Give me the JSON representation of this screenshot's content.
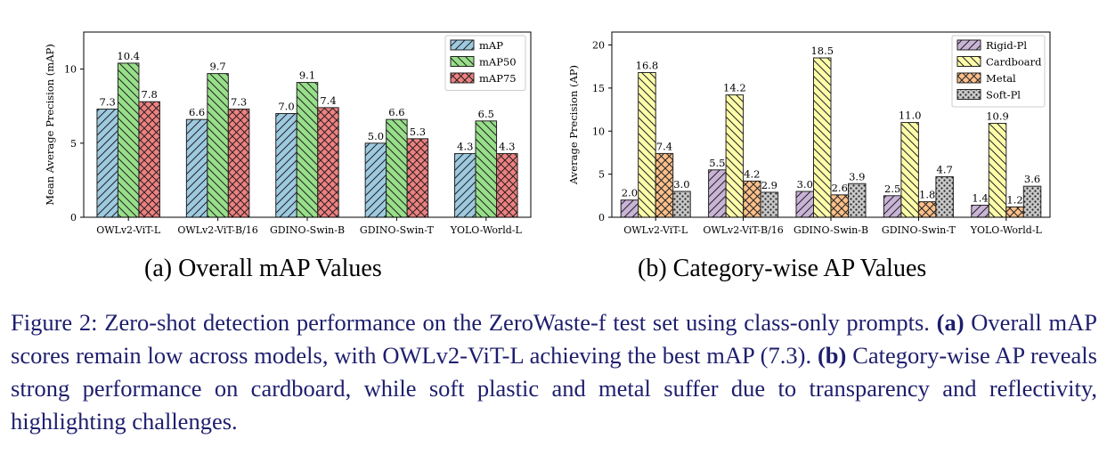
{
  "chart_data": [
    {
      "type": "bar",
      "title": "",
      "ylabel": "Mean Average Precision (mAP)",
      "xlabel": "",
      "ylim": [
        0,
        12.5
      ],
      "yticks": [
        0,
        5,
        10
      ],
      "categories": [
        "OWLv2-ViT-L",
        "OWLv2-ViT-B/16",
        "GDINO-Swin-B",
        "GDINO-Swin-T",
        "YOLO-World-L"
      ],
      "series": [
        {
          "name": "mAP",
          "values": [
            7.3,
            6.6,
            7.0,
            5.0,
            4.3
          ],
          "labels": [
            "7.3",
            "6.6",
            "7.0",
            "5.0",
            "4.3"
          ],
          "color": "#9ecae1",
          "hatch": "diag"
        },
        {
          "name": "mAP50",
          "values": [
            10.4,
            9.7,
            9.1,
            6.6,
            6.5
          ],
          "labels": [
            "10.4",
            "9.7",
            "9.1",
            "6.6",
            "6.5"
          ],
          "color": "#98df8a",
          "hatch": "backdiag"
        },
        {
          "name": "mAP75",
          "values": [
            7.8,
            7.3,
            7.4,
            5.3,
            4.3
          ],
          "labels": [
            "7.8",
            "7.3",
            "7.4",
            "5.3",
            "4.3"
          ],
          "color": "#f08080",
          "hatch": "cross"
        }
      ],
      "legend": "top-right",
      "grid": false
    },
    {
      "type": "bar",
      "title": "",
      "ylabel": "Average Precision (AP)",
      "xlabel": "",
      "ylim": [
        0,
        21.5
      ],
      "yticks": [
        0,
        5,
        10,
        15,
        20
      ],
      "categories": [
        "OWLv2-ViT-L",
        "OWLv2-ViT-B/16",
        "GDINO-Swin-B",
        "GDINO-Swin-T",
        "YOLO-World-L"
      ],
      "series": [
        {
          "name": "Rigid-Pl",
          "values": [
            2.0,
            5.5,
            3.0,
            2.5,
            1.4
          ],
          "labels": [
            "2.0",
            "5.5",
            "3.0",
            "2.5",
            "1.4"
          ],
          "color": "#c9b3d6",
          "hatch": "diag"
        },
        {
          "name": "Cardboard",
          "values": [
            16.8,
            14.2,
            18.5,
            11.0,
            10.9
          ],
          "labels": [
            "16.8",
            "14.2",
            "18.5",
            "11.0",
            "10.9"
          ],
          "color": "#fdfdaa",
          "hatch": "backdiag"
        },
        {
          "name": "Metal",
          "values": [
            7.4,
            4.2,
            2.6,
            1.8,
            1.2
          ],
          "labels": [
            "7.4",
            "4.2",
            "2.6",
            "1.8",
            "1.2"
          ],
          "color": "#fdc08a",
          "hatch": "cross"
        },
        {
          "name": "Soft-Pl",
          "values": [
            3.0,
            2.9,
            3.9,
            4.7,
            3.6
          ],
          "labels": [
            "3.0",
            "2.9",
            "3.9",
            "4.7",
            "3.6"
          ],
          "color": "#c8c8c8",
          "hatch": "dots"
        }
      ],
      "legend": "top-right",
      "grid": false
    }
  ],
  "subcaptions": {
    "a": "(a) Overall mAP Values",
    "b": "(b) Category-wise AP Values"
  },
  "caption": {
    "prefix": "Figure 2:   Zero-shot detection performance on the ZeroWaste-f test set using class-only prompts. ",
    "a_marker": "(a)",
    "a_text": " Overall mAP scores remain low across models, with OWLv2-ViT-L achieving the best mAP (7.3). ",
    "b_marker": "(b)",
    "b_text": " Category-wise AP reveals strong performance on cardboard, while soft plastic and metal suffer due to transparency and reflectivity, highlighting challenges."
  }
}
